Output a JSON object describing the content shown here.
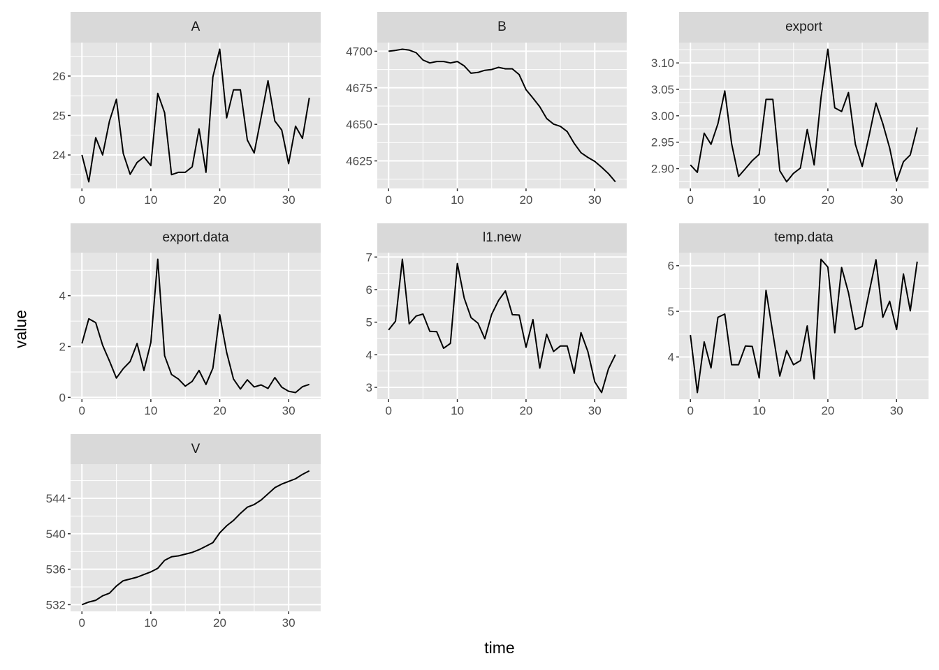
{
  "chart_data": {
    "type": "line",
    "facet_layout": "3 columns, free y scales",
    "xlabel": "time",
    "ylabel": "value",
    "x": [
      0,
      1,
      2,
      3,
      4,
      5,
      6,
      7,
      8,
      9,
      10,
      11,
      12,
      13,
      14,
      15,
      16,
      17,
      18,
      19,
      20,
      21,
      22,
      23,
      24,
      25,
      26,
      27,
      28,
      29,
      30,
      31,
      32,
      33
    ],
    "x_ticks": [
      0,
      10,
      20,
      30
    ],
    "grid": true,
    "panels": [
      {
        "name": "A",
        "y_ticks": [
          24,
          25,
          26
        ],
        "y_tick_labels": [
          "24",
          "25",
          "26"
        ],
        "values": [
          24.0,
          23.32,
          24.44,
          24.0,
          24.86,
          25.41,
          24.04,
          23.51,
          23.81,
          23.95,
          23.73,
          25.56,
          25.07,
          23.5,
          23.56,
          23.56,
          23.7,
          24.66,
          23.56,
          25.98,
          26.68,
          24.94,
          25.65,
          25.65,
          24.38,
          24.05,
          24.95,
          25.88,
          24.86,
          24.63,
          23.78,
          24.73,
          24.42,
          25.45
        ]
      },
      {
        "name": "B",
        "y_ticks": [
          4625,
          4650,
          4675,
          4700
        ],
        "y_tick_labels": [
          "4625",
          "4650",
          "4675",
          "4700"
        ],
        "values": [
          4700,
          4700.6,
          4701.4,
          4700.8,
          4699,
          4694,
          4692,
          4693,
          4693,
          4692,
          4693,
          4690,
          4685,
          4685.5,
          4687,
          4687.5,
          4689,
          4688,
          4688,
          4684,
          4673.7,
          4668,
          4662,
          4654,
          4650.2,
          4648.6,
          4645,
          4637,
          4630.6,
          4627.4,
          4624.7,
          4620.7,
          4616.3,
          4610.7
        ]
      },
      {
        "name": "export",
        "y_ticks": [
          2.9,
          2.95,
          3.0,
          3.05,
          3.1
        ],
        "y_tick_labels": [
          "2.90",
          "2.95",
          "3.00",
          "3.05",
          "3.10"
        ],
        "values": [
          2.907,
          2.893,
          2.967,
          2.946,
          2.985,
          3.047,
          2.947,
          2.885,
          2.9,
          2.915,
          2.927,
          3.031,
          3.031,
          2.896,
          2.875,
          2.891,
          2.901,
          2.974,
          2.907,
          3.034,
          3.126,
          3.015,
          3.008,
          3.044,
          2.946,
          2.904,
          2.962,
          3.024,
          2.985,
          2.939,
          2.876,
          2.913,
          2.926,
          2.978
        ]
      },
      {
        "name": "export.data",
        "y_ticks": [
          0,
          2,
          4
        ],
        "y_tick_labels": [
          "0",
          "2",
          "4"
        ],
        "values": [
          2.12,
          3.09,
          2.94,
          2.05,
          1.43,
          0.76,
          1.13,
          1.41,
          2.12,
          1.06,
          2.16,
          5.43,
          1.64,
          0.9,
          0.72,
          0.44,
          0.63,
          1.06,
          0.51,
          1.15,
          3.25,
          1.77,
          0.72,
          0.33,
          0.69,
          0.41,
          0.49,
          0.35,
          0.78,
          0.4,
          0.24,
          0.19,
          0.42,
          0.51
        ]
      },
      {
        "name": "l1.new",
        "y_ticks": [
          3,
          4,
          5,
          6,
          7
        ],
        "y_tick_labels": [
          "3",
          "4",
          "5",
          "6",
          "7"
        ],
        "values": [
          4.76,
          5.03,
          6.93,
          4.95,
          5.19,
          5.25,
          4.72,
          4.71,
          4.2,
          4.35,
          6.8,
          5.74,
          5.14,
          4.97,
          4.49,
          5.24,
          5.67,
          5.96,
          5.23,
          5.22,
          4.23,
          5.08,
          3.59,
          4.63,
          4.1,
          4.27,
          4.27,
          3.43,
          4.68,
          4.1,
          3.17,
          2.84,
          3.57,
          4.0
        ]
      },
      {
        "name": "temp.data",
        "y_ticks": [
          4,
          5,
          6
        ],
        "y_tick_labels": [
          "4",
          "5",
          "6"
        ],
        "values": [
          4.48,
          3.22,
          4.33,
          3.76,
          4.87,
          4.94,
          3.83,
          3.83,
          4.24,
          4.23,
          3.54,
          5.46,
          4.52,
          3.58,
          4.14,
          3.83,
          3.92,
          4.68,
          3.52,
          6.14,
          5.97,
          4.53,
          5.96,
          5.41,
          4.6,
          4.67,
          5.41,
          6.13,
          4.87,
          5.22,
          4.6,
          5.82,
          5.01,
          6.09
        ]
      },
      {
        "name": "V",
        "y_ticks": [
          532,
          536,
          540,
          544
        ],
        "y_tick_labels": [
          "532",
          "536",
          "540",
          "544"
        ],
        "values": [
          532.0,
          532.3,
          532.5,
          533.0,
          533.3,
          534.1,
          534.7,
          534.9,
          535.1,
          535.4,
          535.7,
          536.1,
          537.0,
          537.4,
          537.5,
          537.7,
          537.9,
          538.2,
          538.6,
          539.0,
          540.1,
          540.9,
          541.5,
          542.3,
          543.0,
          543.3,
          543.8,
          544.5,
          545.2,
          545.6,
          545.9,
          546.2,
          546.7,
          547.1
        ]
      }
    ],
    "colors": {
      "panel_bg": "#e5e5e5",
      "strip_bg": "#d9d9d9",
      "grid": "#ffffff",
      "line": "#000000",
      "tick_text": "#4d4d4d"
    }
  }
}
